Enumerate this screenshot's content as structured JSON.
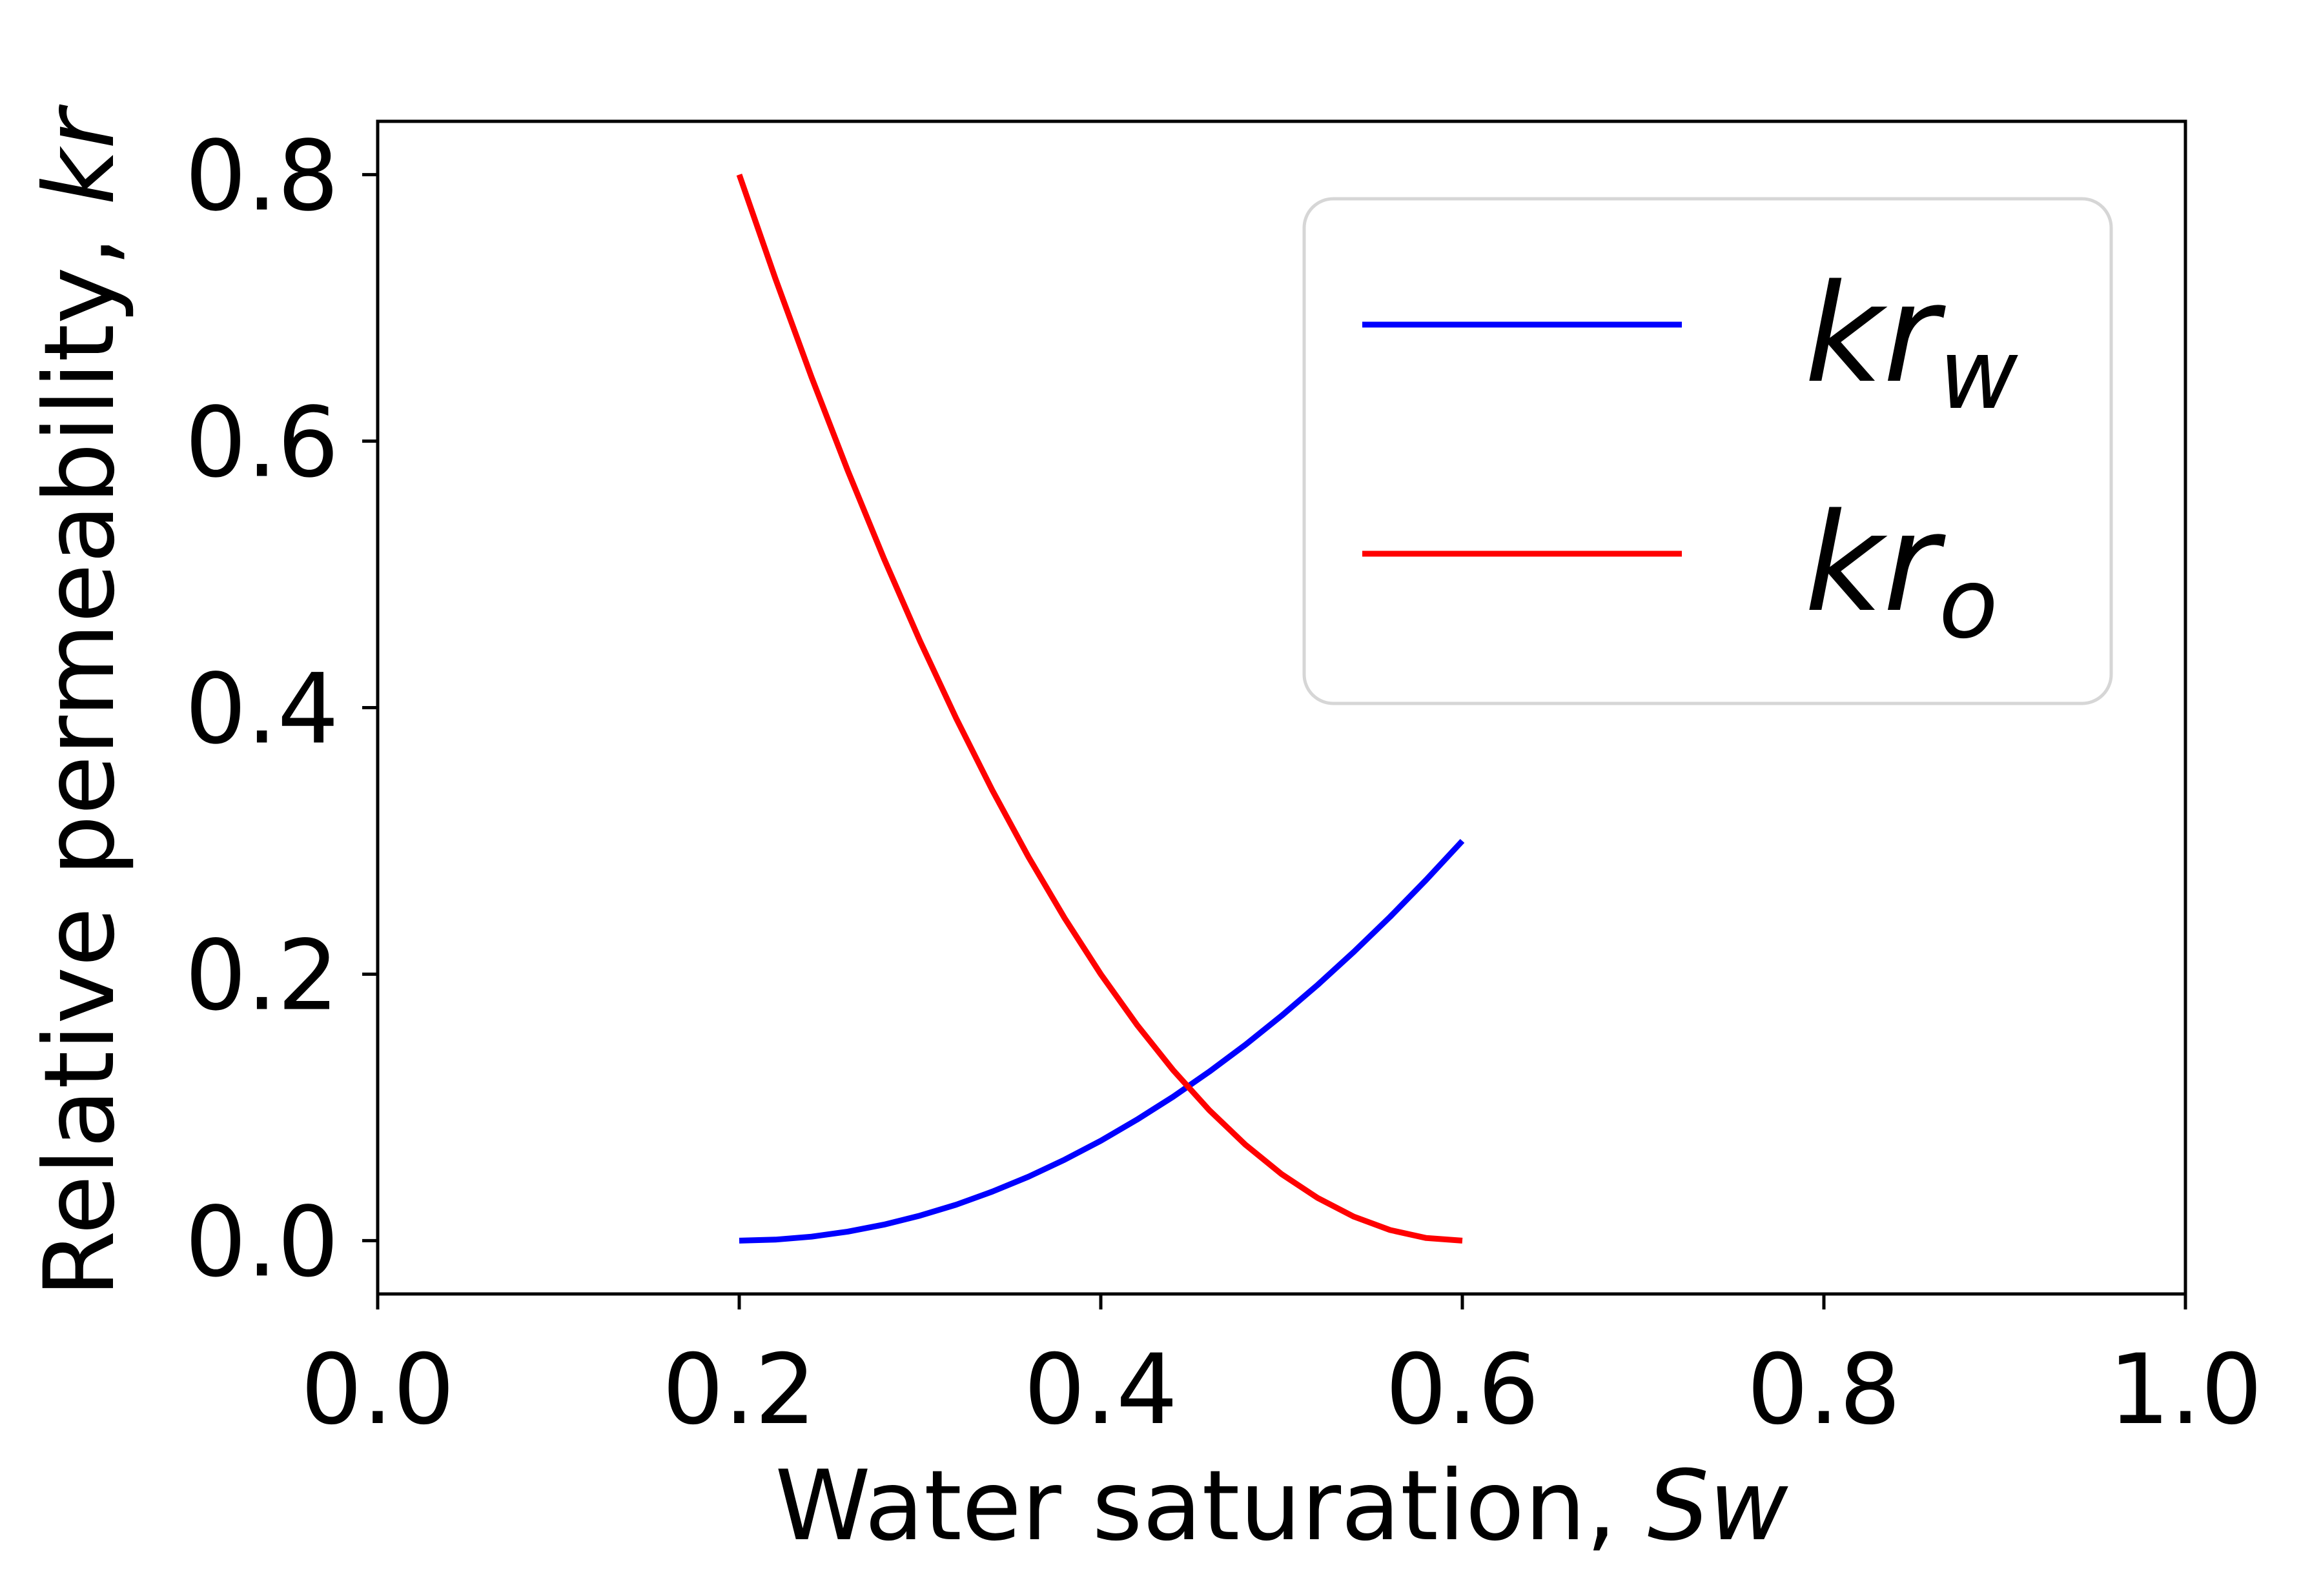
{
  "chart_data": {
    "type": "line",
    "xlabel": {
      "text": "Water saturation, ",
      "var": "Sw"
    },
    "ylabel": {
      "text": "Relative permeability, ",
      "var": "kr"
    },
    "xlim": [
      0.0,
      1.0
    ],
    "ylim": [
      -0.04,
      0.84
    ],
    "xticks": [
      0.0,
      0.2,
      0.4,
      0.6,
      0.8,
      1.0
    ],
    "xtick_labels": [
      "0.0",
      "0.2",
      "0.4",
      "0.6",
      "0.8",
      "1.0"
    ],
    "yticks": [
      0.0,
      0.2,
      0.4,
      0.6,
      0.8
    ],
    "ytick_labels": [
      "0.0",
      "0.2",
      "0.4",
      "0.6",
      "0.8"
    ],
    "grid": false,
    "legend": {
      "position": "upper-right"
    },
    "series": [
      {
        "name": "kr_w",
        "base": "kr",
        "sub": "w",
        "color": "#0000ff",
        "x": [
          0.2,
          0.22,
          0.24,
          0.26,
          0.28,
          0.3,
          0.32,
          0.34,
          0.36,
          0.38,
          0.4,
          0.42,
          0.44,
          0.46,
          0.48,
          0.5,
          0.52,
          0.54,
          0.56,
          0.58,
          0.6
        ],
        "y": [
          0.0,
          0.0008,
          0.003,
          0.0068,
          0.012,
          0.0188,
          0.027,
          0.0368,
          0.048,
          0.0608,
          0.075,
          0.0908,
          0.108,
          0.1268,
          0.147,
          0.1688,
          0.192,
          0.2168,
          0.243,
          0.2708,
          0.3
        ]
      },
      {
        "name": "kr_o",
        "base": "kr",
        "sub": "o",
        "color": "#ff0000",
        "x": [
          0.2,
          0.22,
          0.24,
          0.26,
          0.28,
          0.3,
          0.32,
          0.34,
          0.36,
          0.38,
          0.4,
          0.42,
          0.44,
          0.46,
          0.48,
          0.5,
          0.52,
          0.54,
          0.56,
          0.58,
          0.6
        ],
        "y": [
          0.8,
          0.722,
          0.648,
          0.578,
          0.512,
          0.45,
          0.392,
          0.338,
          0.288,
          0.242,
          0.2,
          0.162,
          0.128,
          0.098,
          0.072,
          0.05,
          0.032,
          0.018,
          0.008,
          0.002,
          0.0
        ]
      }
    ]
  }
}
